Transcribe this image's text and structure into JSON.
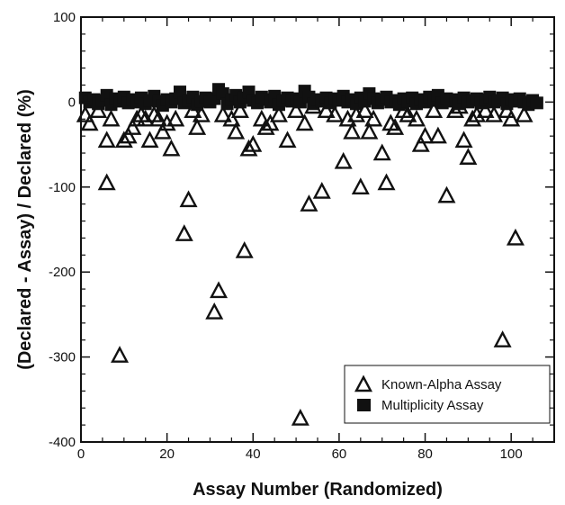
{
  "chart_data": {
    "type": "scatter",
    "title": "",
    "xlabel": "Assay Number (Randomized)",
    "ylabel": "(Declared - Assay) / Declared (%)",
    "xlim": [
      0,
      110
    ],
    "ylim": [
      -400,
      100
    ],
    "x_ticks": [
      0,
      20,
      40,
      60,
      80,
      100
    ],
    "y_ticks": [
      -400,
      -300,
      -200,
      -100,
      0,
      100
    ],
    "grid": false,
    "legend_position": "bottom-right",
    "series": [
      {
        "name": "Known-Alpha Assay",
        "marker": "open-triangle",
        "points": [
          [
            1,
            -15
          ],
          [
            2,
            -25
          ],
          [
            4,
            -10
          ],
          [
            6,
            -45
          ],
          [
            6,
            -95
          ],
          [
            7,
            -20
          ],
          [
            9,
            -298
          ],
          [
            10,
            -45
          ],
          [
            11,
            -40
          ],
          [
            12,
            -30
          ],
          [
            13,
            -20
          ],
          [
            14,
            -15
          ],
          [
            15,
            -20
          ],
          [
            16,
            -45
          ],
          [
            17,
            -15
          ],
          [
            18,
            -20
          ],
          [
            19,
            -35
          ],
          [
            20,
            -25
          ],
          [
            21,
            -55
          ],
          [
            22,
            -20
          ],
          [
            24,
            -155
          ],
          [
            25,
            -115
          ],
          [
            26,
            -10
          ],
          [
            27,
            -30
          ],
          [
            28,
            -15
          ],
          [
            31,
            -247
          ],
          [
            32,
            -222
          ],
          [
            33,
            -15
          ],
          [
            35,
            -20
          ],
          [
            36,
            -35
          ],
          [
            37,
            -10
          ],
          [
            38,
            -175
          ],
          [
            39,
            -55
          ],
          [
            40,
            -50
          ],
          [
            42,
            -20
          ],
          [
            43,
            -30
          ],
          [
            44,
            -25
          ],
          [
            46,
            -15
          ],
          [
            48,
            -45
          ],
          [
            50,
            -10
          ],
          [
            51,
            -372
          ],
          [
            52,
            -25
          ],
          [
            53,
            -120
          ],
          [
            54,
            -5
          ],
          [
            56,
            -105
          ],
          [
            57,
            -10
          ],
          [
            59,
            -15
          ],
          [
            61,
            -70
          ],
          [
            62,
            -20
          ],
          [
            63,
            -35
          ],
          [
            64,
            -15
          ],
          [
            65,
            -100
          ],
          [
            66,
            -10
          ],
          [
            67,
            -35
          ],
          [
            68,
            -20
          ],
          [
            70,
            -60
          ],
          [
            71,
            -95
          ],
          [
            72,
            -25
          ],
          [
            73,
            -30
          ],
          [
            75,
            -10
          ],
          [
            76,
            -15
          ],
          [
            78,
            -20
          ],
          [
            79,
            -50
          ],
          [
            80,
            -40
          ],
          [
            82,
            -10
          ],
          [
            83,
            -40
          ],
          [
            85,
            -110
          ],
          [
            87,
            -10
          ],
          [
            88,
            -5
          ],
          [
            89,
            -45
          ],
          [
            90,
            -65
          ],
          [
            91,
            -20
          ],
          [
            92,
            -15
          ],
          [
            94,
            -10
          ],
          [
            96,
            -15
          ],
          [
            98,
            -280
          ],
          [
            99,
            -10
          ],
          [
            100,
            -20
          ],
          [
            101,
            -160
          ],
          [
            103,
            -15
          ]
        ]
      },
      {
        "name": "Multiplicity Assay",
        "marker": "filled-square",
        "points": [
          [
            1,
            5
          ],
          [
            2,
            0
          ],
          [
            3,
            3
          ],
          [
            4,
            -2
          ],
          [
            5,
            2
          ],
          [
            6,
            8
          ],
          [
            7,
            -3
          ],
          [
            8,
            4
          ],
          [
            9,
            1
          ],
          [
            10,
            6
          ],
          [
            11,
            -1
          ],
          [
            12,
            3
          ],
          [
            13,
            0
          ],
          [
            14,
            5
          ],
          [
            15,
            -2
          ],
          [
            16,
            2
          ],
          [
            17,
            7
          ],
          [
            18,
            1
          ],
          [
            19,
            -4
          ],
          [
            20,
            3
          ],
          [
            21,
            0
          ],
          [
            22,
            4
          ],
          [
            23,
            12
          ],
          [
            24,
            -1
          ],
          [
            25,
            2
          ],
          [
            26,
            6
          ],
          [
            27,
            -3
          ],
          [
            28,
            1
          ],
          [
            29,
            5
          ],
          [
            30,
            0
          ],
          [
            31,
            4
          ],
          [
            32,
            15
          ],
          [
            33,
            10
          ],
          [
            34,
            -2
          ],
          [
            35,
            3
          ],
          [
            36,
            8
          ],
          [
            37,
            0
          ],
          [
            38,
            5
          ],
          [
            39,
            12
          ],
          [
            40,
            2
          ],
          [
            41,
            -1
          ],
          [
            42,
            6
          ],
          [
            43,
            3
          ],
          [
            44,
            0
          ],
          [
            45,
            7
          ],
          [
            46,
            -3
          ],
          [
            47,
            2
          ],
          [
            48,
            5
          ],
          [
            49,
            1
          ],
          [
            50,
            4
          ],
          [
            51,
            0
          ],
          [
            52,
            13
          ],
          [
            53,
            6
          ],
          [
            54,
            -2
          ],
          [
            55,
            3
          ],
          [
            56,
            1
          ],
          [
            57,
            5
          ],
          [
            58,
            -1
          ],
          [
            59,
            4
          ],
          [
            60,
            2
          ],
          [
            61,
            7
          ],
          [
            62,
            0
          ],
          [
            63,
            3
          ],
          [
            64,
            -2
          ],
          [
            65,
            5
          ],
          [
            66,
            1
          ],
          [
            67,
            10
          ],
          [
            68,
            4
          ],
          [
            69,
            -1
          ],
          [
            70,
            3
          ],
          [
            71,
            6
          ],
          [
            72,
            0
          ],
          [
            73,
            2
          ],
          [
            74,
            -3
          ],
          [
            75,
            4
          ],
          [
            76,
            1
          ],
          [
            77,
            5
          ],
          [
            78,
            -2
          ],
          [
            79,
            3
          ],
          [
            80,
            0
          ],
          [
            81,
            6
          ],
          [
            82,
            2
          ],
          [
            83,
            8
          ],
          [
            84,
            -1
          ],
          [
            85,
            4
          ],
          [
            86,
            1
          ],
          [
            87,
            3
          ],
          [
            88,
            -2
          ],
          [
            89,
            5
          ],
          [
            90,
            0
          ],
          [
            91,
            2
          ],
          [
            92,
            4
          ],
          [
            93,
            -1
          ],
          [
            94,
            3
          ],
          [
            95,
            6
          ],
          [
            96,
            0
          ],
          [
            97,
            2
          ],
          [
            98,
            5
          ],
          [
            99,
            -2
          ],
          [
            100,
            3
          ],
          [
            101,
            1
          ],
          [
            102,
            4
          ],
          [
            103,
            0
          ],
          [
            104,
            -3
          ],
          [
            105,
            2
          ],
          [
            106,
            -1
          ]
        ]
      }
    ]
  }
}
